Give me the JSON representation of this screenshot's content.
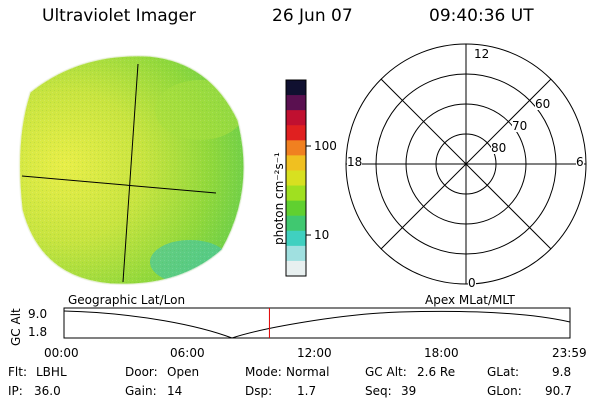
{
  "header": {
    "instrument": "Ultraviolet Imager",
    "date": "26 Jun 07",
    "time": "09:40:36 UT"
  },
  "panels": {
    "left_title": "Geographic Lat/Lon",
    "right_title": "Apex MLat/MLT"
  },
  "colorbar": {
    "unit_label": "photon cm⁻²s⁻¹",
    "ticks": [
      {
        "label": "100",
        "value": 100
      },
      {
        "label": "10",
        "value": 10
      }
    ],
    "scale": "log",
    "colors": [
      "#101030",
      "#5a1050",
      "#c01030",
      "#e02020",
      "#f08020",
      "#f0c020",
      "#d8e020",
      "#a0e020",
      "#60d030",
      "#40c870",
      "#40d0c0",
      "#a0e0e0",
      "#e8f0f0"
    ]
  },
  "polar_plot": {
    "mlt_labels": [
      {
        "label": "12",
        "pos": "top"
      },
      {
        "label": "18",
        "pos": "left"
      },
      {
        "label": "6",
        "pos": "right"
      },
      {
        "label": "0",
        "pos": "bottom"
      }
    ],
    "mlat_labels": [
      "80",
      "70",
      "60"
    ]
  },
  "timeline": {
    "ylabel": "GC Alt",
    "y_ticks": [
      "9.0",
      "1.8"
    ],
    "x_ticks": [
      "00:00",
      "06:00",
      "12:00",
      "18:00",
      "23:59"
    ],
    "current_time_fraction": 0.406,
    "marker_color": "#e00000"
  },
  "info": {
    "filter": {
      "label": "Flt:",
      "value": "LBHL"
    },
    "ip": {
      "label": "IP:",
      "value": "36.0"
    },
    "door": {
      "label": "Door:",
      "value": "Open"
    },
    "gain": {
      "label": "Gain:",
      "value": "14"
    },
    "mode": {
      "label": "Mode:",
      "value": "Normal"
    },
    "dsp": {
      "label": "Dsp:",
      "value": "1.7"
    },
    "gc_alt": {
      "label": "GC Alt:",
      "value": "2.6 Re"
    },
    "seq": {
      "label": "Seq:",
      "value": "39"
    },
    "glat": {
      "label": "GLat:",
      "value": "9.8"
    },
    "glon": {
      "label": "GLon:",
      "value": "90.7"
    }
  }
}
